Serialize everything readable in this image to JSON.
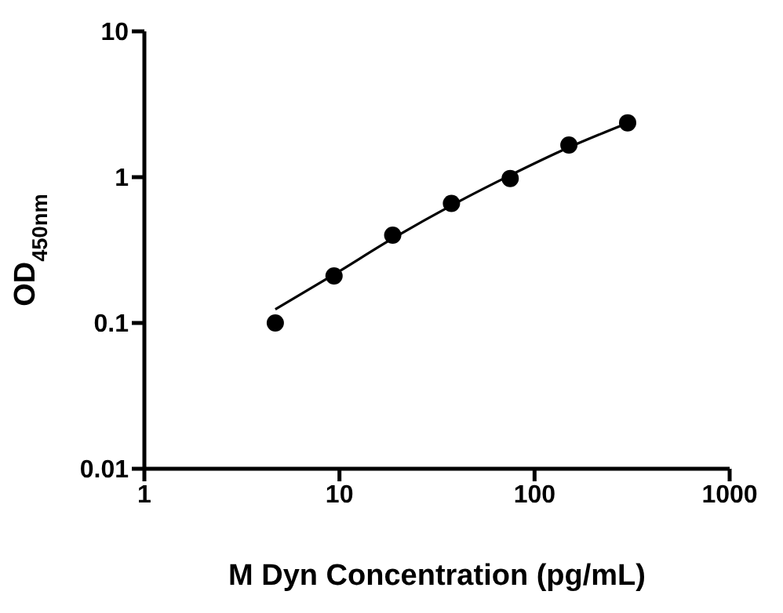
{
  "chart_data": {
    "type": "scatter",
    "xlabel": "M Dyn Concentration (pg/mL)",
    "ylabel": "OD$_{450nm}$",
    "log": "xy",
    "grid": false,
    "legend": false,
    "marker": "circle",
    "xlim": [
      1,
      1000
    ],
    "xticks": [
      1,
      10,
      100,
      1000
    ],
    "ylim": [
      0.01,
      10
    ],
    "yticks": [
      0.01,
      0.1,
      1,
      10
    ],
    "series": [
      {
        "color": "#000000",
        "x": [
          4.69,
          9.38,
          18.75,
          37.5,
          75,
          150,
          300
        ],
        "values": [
          0.1,
          0.21,
          0.4,
          0.66,
          0.98,
          1.66,
          2.36
        ]
      },
      {
        "type": "line",
        "color": "#000000",
        "line_style": "solid",
        "marker": "none",
        "x": [
          4.69,
          9.38,
          18.75,
          37.5,
          75,
          150,
          300
        ],
        "values": [
          0.124,
          0.215,
          0.38,
          0.64,
          1.03,
          1.6,
          2.35
        ]
      }
    ]
  }
}
